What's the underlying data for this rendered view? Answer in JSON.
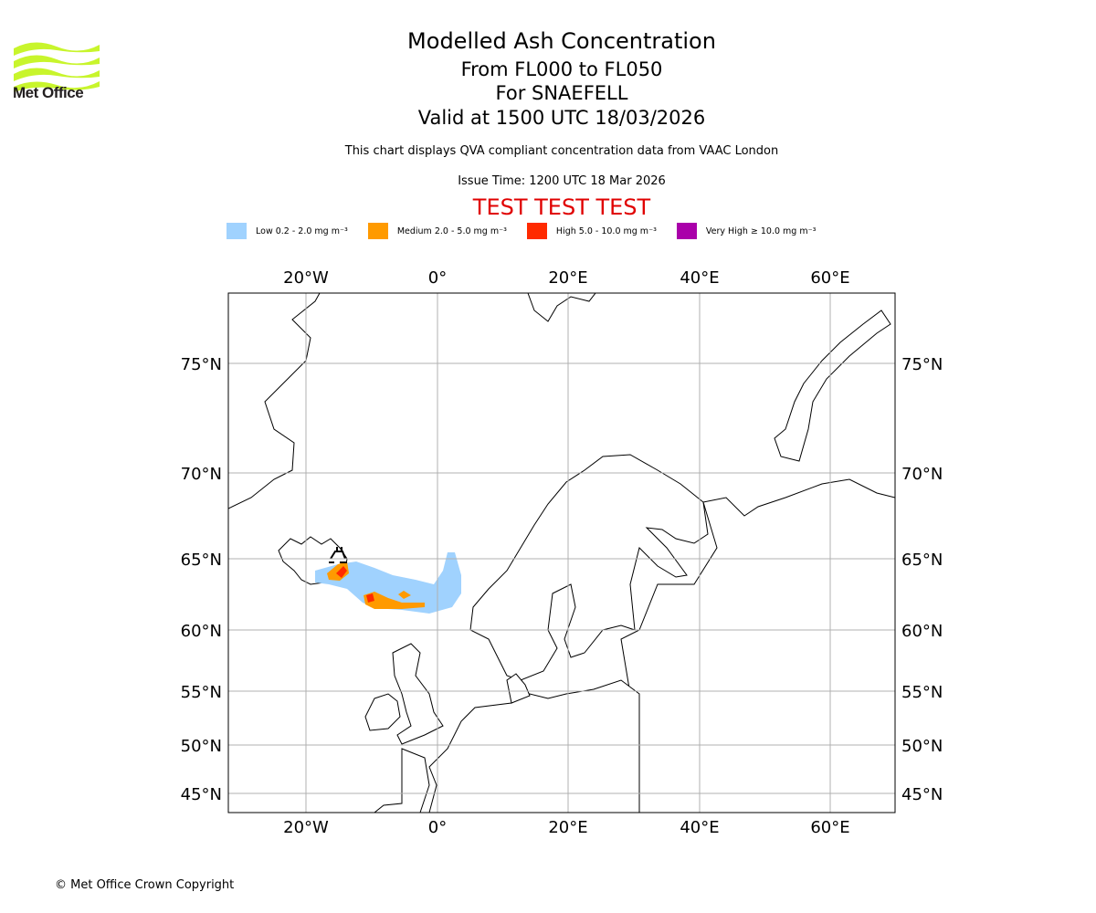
{
  "header": {
    "title": "Modelled Ash Concentration",
    "levels": "From FL000 to FL050",
    "volcano": "For SNAEFELL",
    "valid": "Valid at 1500 UTC 18/03/2026",
    "note": "This chart displays QVA compliant concentration data from VAAC London",
    "issue": "Issue Time: 1200 UTC 18 Mar 2026",
    "test_banner": "TEST TEST TEST"
  },
  "logo": {
    "text": "Met Office",
    "color": "#c8f52c"
  },
  "legend": [
    {
      "label": "Low 0.2 - 2.0 mg m⁻³",
      "color": "#a0d2fe"
    },
    {
      "label": "Medium 2.0 - 5.0 mg m⁻³",
      "color": "#ff9a00"
    },
    {
      "label": "High 5.0 - 10.0 mg m⁻³",
      "color": "#ff2a00"
    },
    {
      "label": "Very High ≥ 10.0 mg m⁻³",
      "color": "#aa00aa"
    }
  ],
  "map": {
    "lon_labels": [
      "20°W",
      "0°",
      "20°E",
      "40°E",
      "60°E"
    ],
    "lat_labels": [
      "75°N",
      "70°N",
      "65°N",
      "60°N",
      "55°N",
      "50°N",
      "45°N"
    ],
    "volcano_symbol": "volcano-icon"
  },
  "footer": {
    "copyright": "© Met Office Crown Copyright"
  }
}
